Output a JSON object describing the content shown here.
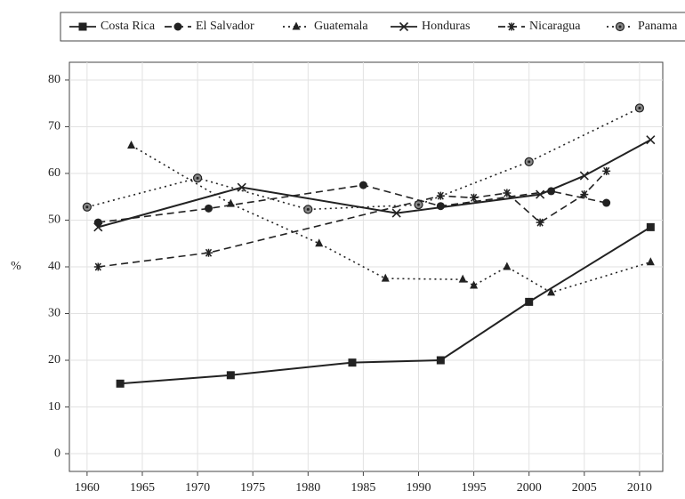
{
  "chart_data": {
    "type": "line",
    "y_label": "%",
    "xlim": [
      1958.4,
      2012.1
    ],
    "ylim": [
      -3.8,
      83.8
    ],
    "xticks": [
      1960,
      1965,
      1970,
      1975,
      1980,
      1985,
      1990,
      1995,
      2000,
      2005,
      2010
    ],
    "yticks": [
      0,
      10,
      20,
      30,
      40,
      50,
      60,
      70,
      80
    ],
    "grid": true,
    "legend": "top",
    "series": [
      {
        "name": "Costa Rica",
        "color": "#222222",
        "line_style": "solid",
        "marker": "square",
        "x": [
          1963,
          1973,
          1984,
          1992,
          2000,
          2011
        ],
        "values": [
          15,
          16.8,
          19.5,
          20,
          32.5,
          48.5
        ]
      },
      {
        "name": "El Salvador",
        "color": "#222222",
        "line_style": "dashed",
        "marker": "circle",
        "x": [
          1961,
          1971,
          1985,
          1992,
          2002,
          2007
        ],
        "values": [
          49.5,
          52.5,
          57.5,
          53,
          56.2,
          53.7
        ]
      },
      {
        "name": "Guatemala",
        "color": "#222222",
        "line_style": "dotted",
        "marker": "triangle",
        "x": [
          1964,
          1973,
          1981,
          1987,
          1994,
          1995,
          1998,
          2002,
          2011
        ],
        "values": [
          66,
          53.5,
          45,
          37.5,
          37.3,
          36,
          40,
          34.5,
          41
        ]
      },
      {
        "name": "Honduras",
        "color": "#222222",
        "line_style": "solid",
        "marker": "x",
        "x": [
          1961,
          1974,
          1988,
          2001,
          2005,
          2011
        ],
        "values": [
          48.5,
          57,
          51.5,
          55.5,
          59.5,
          67.2
        ]
      },
      {
        "name": "Nicaragua",
        "color": "#222222",
        "line_style": "dashed",
        "marker": "asterisk",
        "x": [
          1961,
          1971,
          1992,
          1995,
          1998,
          2001,
          2005,
          2007
        ],
        "values": [
          40,
          43,
          55.2,
          54.8,
          55.8,
          49.5,
          55.5,
          60.5
        ]
      },
      {
        "name": "Panama",
        "color": "#222222",
        "line_style": "dotted",
        "marker": "circle-dot",
        "x": [
          1960,
          1970,
          1980,
          1990,
          2000,
          2010
        ],
        "values": [
          52.8,
          59,
          52.3,
          53.3,
          62.5,
          74
        ]
      }
    ]
  }
}
